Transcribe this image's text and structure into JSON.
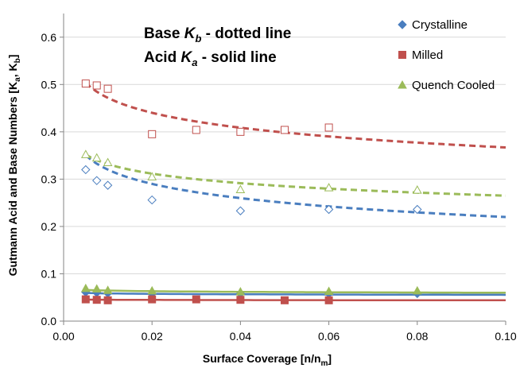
{
  "chart_data": {
    "type": "scatter",
    "xlabel": "Surface Coverage [n/n",
    "xlabel_sub": "m",
    "xlabel_end": "]",
    "ylabel": "Gutmann Acid and Base Numbers [K",
    "ylabel_sub1": "a",
    "ylabel_mid": ", K",
    "ylabel_sub2": "b",
    "ylabel_end": "]",
    "xlim": [
      0,
      0.1
    ],
    "ylim": [
      0,
      0.65
    ],
    "x_ticks": [
      "0.00",
      "0.02",
      "0.04",
      "0.06",
      "0.08",
      "0.10"
    ],
    "y_ticks": [
      "0.0",
      "0.1",
      "0.2",
      "0.3",
      "0.4",
      "0.5",
      "0.6"
    ],
    "annotations": {
      "line1_pre": "Base ",
      "line1_var": "K",
      "line1_sub": "b",
      "line1_post": " - dotted line",
      "line2_pre": "Acid ",
      "line2_var": "K",
      "line2_sub": "a",
      "line2_post": " - solid line"
    },
    "legend_position": "top-right",
    "series": [
      {
        "name": "Crystalline",
        "color": "#4a7ebf",
        "marker": "diamond",
        "x": [
          0.005,
          0.0075,
          0.01,
          0.02,
          0.04,
          0.06,
          0.08
        ],
        "base_kb": [
          0.32,
          0.297,
          0.287,
          0.256,
          0.233,
          0.236,
          0.236
        ],
        "acid_ka": [
          0.061,
          0.06,
          0.059,
          0.058,
          0.058,
          0.058,
          0.058
        ],
        "fit_base": {
          "a": 0.22,
          "b": -0.0435
        },
        "fit_acid": {
          "a": 0.0555,
          "b": -0.0013
        }
      },
      {
        "name": "Milled",
        "color": "#c0504d",
        "marker": "square",
        "x": [
          0.005,
          0.0075,
          0.01,
          0.02,
          0.03,
          0.04,
          0.05,
          0.06
        ],
        "base_kb": [
          0.502,
          0.498,
          0.491,
          0.395,
          0.404,
          0.4,
          0.404,
          0.409
        ],
        "acid_ka": [
          0.046,
          0.045,
          0.044,
          0.046,
          0.046,
          0.045,
          0.044,
          0.044
        ],
        "fit_base": {
          "a": 0.367,
          "b": -0.0455
        },
        "fit_acid": {
          "a": 0.044,
          "b": -0.0005
        }
      },
      {
        "name": "Quench Cooled",
        "color": "#9bbb59",
        "marker": "triangle",
        "x": [
          0.005,
          0.0075,
          0.01,
          0.02,
          0.04,
          0.06,
          0.08
        ],
        "base_kb": [
          0.352,
          0.345,
          0.335,
          0.305,
          0.278,
          0.282,
          0.277
        ],
        "acid_ka": [
          0.069,
          0.068,
          0.065,
          0.064,
          0.062,
          0.063,
          0.064
        ],
        "fit_base": {
          "a": 0.265,
          "b": -0.029
        },
        "fit_acid": {
          "a": 0.06,
          "b": -0.002
        }
      }
    ]
  }
}
